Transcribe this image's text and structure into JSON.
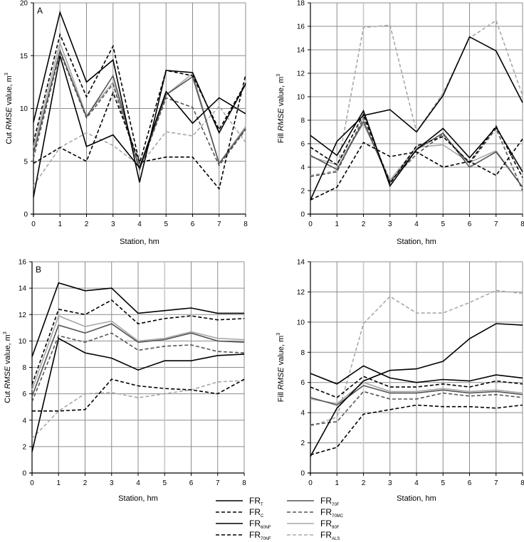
{
  "legend": [
    {
      "key": "FR_T",
      "base": "FR",
      "sub": "T",
      "color": "#000000",
      "dash": false
    },
    {
      "key": "FR_C",
      "base": "FR",
      "sub": "C",
      "color": "#000000",
      "dash": true
    },
    {
      "key": "FR_60NF",
      "base": "FR",
      "sub": "60NF",
      "color": "#000000",
      "dash": false
    },
    {
      "key": "FR_70NF",
      "base": "FR",
      "sub": "70NF",
      "color": "#000000",
      "dash": true
    },
    {
      "key": "FR_70F",
      "base": "FR",
      "sub": "70F",
      "color": "#555555",
      "dash": false
    },
    {
      "key": "FR_70MC",
      "base": "FR",
      "sub": "70MC",
      "color": "#555555",
      "dash": true
    },
    {
      "key": "FR_90F",
      "base": "FR",
      "sub": "90F",
      "color": "#a8a8a8",
      "dash": false
    },
    {
      "key": "FR_ALS",
      "base": "FR",
      "sub": "ALS",
      "color": "#a8a8a8",
      "dash": true
    }
  ],
  "chart_data": [
    {
      "id": "top-left",
      "type": "line",
      "panel_label": "A",
      "title": "",
      "xlabel": "Station, hm",
      "ylabel": "Cut RMSE value, m³",
      "ylabel_parts": [
        "Cut ",
        "RMSE",
        " value, m",
        "3"
      ],
      "x": [
        0,
        1,
        2,
        3,
        4,
        5,
        6,
        7,
        8
      ],
      "xlim": [
        0,
        8
      ],
      "ylim": [
        0,
        20
      ],
      "yticks": [
        0,
        5,
        10,
        15,
        20
      ],
      "grid": true,
      "series": [
        {
          "name": "FR_T",
          "values": [
            8.7,
            19.1,
            12.5,
            14.6,
            3.0,
            13.6,
            13.4,
            7.7,
            12.3
          ]
        },
        {
          "name": "FR_C",
          "values": [
            6.8,
            17.0,
            11.1,
            15.9,
            4.8,
            13.6,
            13.1,
            8.0,
            12.4
          ]
        },
        {
          "name": "FR_60NF",
          "values": [
            1.6,
            15.0,
            6.4,
            7.5,
            4.4,
            11.6,
            8.6,
            11.0,
            9.5
          ]
        },
        {
          "name": "FR_70NF",
          "values": [
            4.8,
            6.3,
            5.0,
            11.5,
            4.9,
            5.4,
            5.4,
            2.4,
            13.2
          ]
        },
        {
          "name": "FR_70F",
          "values": [
            5.8,
            15.5,
            9.2,
            13.1,
            4.2,
            11.3,
            13.0,
            4.8,
            8.1
          ]
        },
        {
          "name": "FR_70MC",
          "values": [
            5.3,
            15.3,
            9.1,
            12.3,
            4.2,
            11.0,
            10.1,
            4.6,
            8.0
          ]
        },
        {
          "name": "FR_90F",
          "values": [
            6.3,
            16.2,
            9.3,
            12.5,
            4.4,
            11.3,
            13.3,
            4.8,
            8.3
          ]
        },
        {
          "name": "FR_ALS",
          "values": [
            2.7,
            6.3,
            7.7,
            6.5,
            4.6,
            7.8,
            7.4,
            10.2,
            6.8
          ]
        }
      ]
    },
    {
      "id": "top-right",
      "type": "line",
      "panel_label": "",
      "title": "",
      "xlabel": "Station, hm",
      "ylabel": "Fill RMSE value, m³",
      "ylabel_parts": [
        "Fill ",
        "RMSE",
        " value, m",
        "3"
      ],
      "x": [
        0,
        1,
        2,
        3,
        4,
        5,
        6,
        7,
        8
      ],
      "xlim": [
        0,
        8
      ],
      "ylim": [
        0,
        18
      ],
      "yticks": [
        0,
        2,
        4,
        6,
        8,
        10,
        12,
        14,
        16,
        18
      ],
      "grid": true,
      "series": [
        {
          "name": "FR_T",
          "values": [
            6.7,
            5.0,
            8.8,
            2.4,
            5.5,
            7.3,
            4.8,
            7.4,
            3.6
          ]
        },
        {
          "name": "FR_C",
          "values": [
            5.7,
            4.2,
            8.5,
            2.6,
            5.8,
            6.6,
            4.4,
            7.5,
            3.1
          ]
        },
        {
          "name": "FR_60NF",
          "values": [
            1.2,
            6.2,
            8.4,
            8.9,
            7.0,
            10.1,
            15.1,
            13.9,
            9.5
          ]
        },
        {
          "name": "FR_70NF",
          "values": [
            1.2,
            2.3,
            6.1,
            4.9,
            5.3,
            4.0,
            4.5,
            3.3,
            6.4
          ]
        },
        {
          "name": "FR_70F",
          "values": [
            5.0,
            3.8,
            7.9,
            2.7,
            5.5,
            6.9,
            4.0,
            5.3,
            2.3
          ]
        },
        {
          "name": "FR_70MC",
          "values": [
            3.2,
            3.6,
            8.2,
            2.8,
            5.1,
            6.8,
            4.3,
            7.3,
            2.0
          ]
        },
        {
          "name": "FR_90F",
          "values": [
            4.9,
            4.2,
            7.7,
            2.9,
            5.7,
            5.9,
            4.4,
            5.4,
            2.3
          ]
        },
        {
          "name": "FR_ALS",
          "values": [
            3.3,
            3.7,
            15.9,
            16.1,
            7.0,
            10.3,
            15.0,
            16.5,
            10.1
          ]
        }
      ]
    },
    {
      "id": "bottom-left",
      "type": "line",
      "panel_label": "B",
      "title": "",
      "xlabel": "Station, hm",
      "ylabel": "Cut RMSE value, m³",
      "ylabel_parts": [
        "Cut ",
        "RMSE",
        " value, m",
        "3"
      ],
      "x": [
        0,
        1,
        2,
        3,
        4,
        5,
        6,
        7,
        8
      ],
      "xlim": [
        0,
        8
      ],
      "ylim": [
        0,
        16
      ],
      "yticks": [
        0,
        2,
        4,
        6,
        8,
        10,
        12,
        14,
        16
      ],
      "grid": true,
      "series": [
        {
          "name": "FR_T",
          "values": [
            8.8,
            14.4,
            13.8,
            14.0,
            12.1,
            12.3,
            12.5,
            12.1,
            12.1
          ]
        },
        {
          "name": "FR_C",
          "values": [
            6.7,
            12.4,
            12.0,
            13.1,
            11.3,
            11.7,
            11.9,
            11.6,
            11.7
          ]
        },
        {
          "name": "FR_60NF",
          "values": [
            1.6,
            10.2,
            9.1,
            8.7,
            7.8,
            8.5,
            8.5,
            8.9,
            9.0
          ]
        },
        {
          "name": "FR_70NF",
          "values": [
            4.7,
            4.7,
            4.8,
            7.1,
            6.6,
            6.4,
            6.3,
            6.0,
            7.1
          ]
        },
        {
          "name": "FR_70F",
          "values": [
            5.8,
            11.2,
            10.6,
            11.3,
            9.9,
            10.1,
            10.6,
            10.0,
            9.9
          ]
        },
        {
          "name": "FR_70MC",
          "values": [
            5.4,
            10.4,
            9.9,
            10.6,
            9.3,
            9.6,
            9.7,
            9.2,
            9.1
          ]
        },
        {
          "name": "FR_90F",
          "values": [
            6.3,
            11.9,
            11.1,
            11.5,
            10.0,
            10.2,
            10.7,
            10.2,
            10.1
          ]
        },
        {
          "name": "FR_ALS",
          "values": [
            2.6,
            4.7,
            6.0,
            6.1,
            5.7,
            6.0,
            6.3,
            6.9,
            7.0
          ]
        }
      ]
    },
    {
      "id": "bottom-right",
      "type": "line",
      "panel_label": "",
      "title": "",
      "xlabel": "Station, hm",
      "ylabel": "Fill RMSE value, m³",
      "ylabel_parts": [
        "Fill ",
        "RMSE",
        " value, m",
        "3"
      ],
      "x": [
        0,
        1,
        2,
        3,
        4,
        5,
        6,
        7,
        8
      ],
      "xlim": [
        0,
        8
      ],
      "ylim": [
        0,
        14
      ],
      "yticks": [
        0,
        2,
        4,
        6,
        8,
        10,
        12,
        14
      ],
      "grid": true,
      "series": [
        {
          "name": "FR_T",
          "values": [
            6.6,
            5.9,
            7.1,
            6.3,
            6.0,
            6.2,
            6.1,
            6.5,
            6.3
          ]
        },
        {
          "name": "FR_C",
          "values": [
            5.7,
            5.0,
            6.4,
            5.7,
            5.7,
            5.9,
            5.7,
            6.1,
            5.9
          ]
        },
        {
          "name": "FR_60NF",
          "values": [
            1.1,
            4.3,
            6.1,
            6.8,
            6.9,
            7.4,
            8.9,
            9.9,
            9.8
          ]
        },
        {
          "name": "FR_70NF",
          "values": [
            1.2,
            1.7,
            3.9,
            4.2,
            4.5,
            4.4,
            4.4,
            4.3,
            4.5
          ]
        },
        {
          "name": "FR_70F",
          "values": [
            5.0,
            4.5,
            5.8,
            5.3,
            5.3,
            5.5,
            5.3,
            5.4,
            5.2
          ]
        },
        {
          "name": "FR_70MC",
          "values": [
            3.2,
            3.4,
            5.4,
            4.9,
            4.9,
            5.3,
            5.1,
            5.2,
            5.0
          ]
        },
        {
          "name": "FR_90F",
          "values": [
            4.9,
            4.6,
            6.0,
            5.4,
            5.4,
            5.6,
            5.4,
            5.5,
            5.3
          ]
        },
        {
          "name": "FR_ALS",
          "values": [
            3.1,
            3.7,
            9.9,
            11.7,
            10.6,
            10.6,
            11.3,
            12.1,
            11.9
          ]
        }
      ]
    }
  ]
}
